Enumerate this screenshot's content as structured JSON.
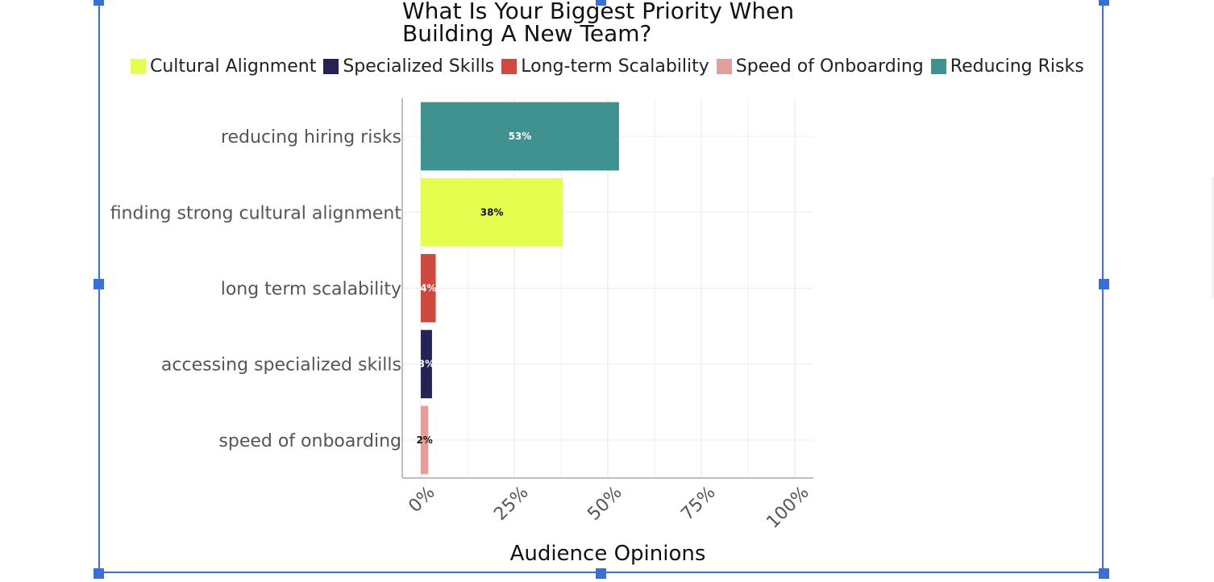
{
  "chart_data": {
    "type": "bar",
    "orientation": "horizontal",
    "title": "What Is Your Biggest Priority When Building A New Team?",
    "title_lines": [
      "What Is Your Biggest Priority When",
      "Building A New Team?"
    ],
    "xlabel": "Audience Opinions",
    "ylabel": "",
    "xlim": [
      0,
      100
    ],
    "x_ticks": [
      0,
      25,
      50,
      75,
      100
    ],
    "x_tick_labels": [
      "0%",
      "25%",
      "50%",
      "75%",
      "100%"
    ],
    "grid": true,
    "legend_position": "top",
    "legend": [
      {
        "name": "Cultural Alignment",
        "color": "#e5fd4e"
      },
      {
        "name": "Specialized Skills",
        "color": "#252353"
      },
      {
        "name": "Long-term Scalability",
        "color": "#cd4a3f"
      },
      {
        "name": "Speed of Onboarding",
        "color": "#e39e9a"
      },
      {
        "name": "Reducing Risks",
        "color": "#409290"
      }
    ],
    "categories": [
      "reducing hiring risks",
      "finding strong cultural alignment",
      "long term scalability",
      "accessing specialized skills",
      "speed of onboarding"
    ],
    "values": [
      53,
      38,
      4,
      3,
      2
    ],
    "value_labels": [
      "53%",
      "38%",
      "4%",
      "3%",
      "2%"
    ],
    "colors": [
      "#409290",
      "#e5fd4e",
      "#cd4a3f",
      "#252353",
      "#e39e9a"
    ],
    "label_colors": [
      "#ffffff",
      "#111111",
      "#ffffff",
      "#ffffff",
      "#111111"
    ]
  }
}
